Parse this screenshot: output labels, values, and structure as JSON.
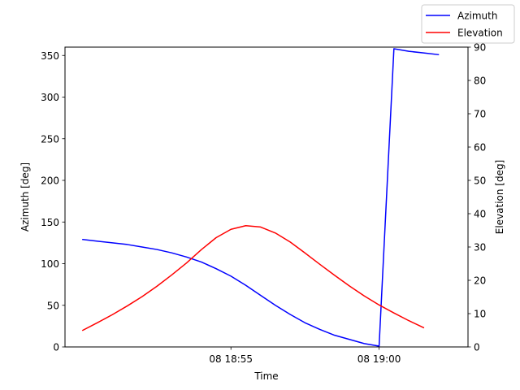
{
  "chart_data": {
    "type": "line",
    "xlabel": "Time",
    "x_ticks": [
      {
        "minute": 55,
        "label": "08 18:55"
      },
      {
        "minute": 60,
        "label": "08 19:00"
      }
    ],
    "xlim_minutes": [
      49.4,
      63.0
    ],
    "y_left": {
      "label": "Azimuth [deg]",
      "ylim": [
        0,
        360
      ],
      "ticks": [
        0,
        50,
        100,
        150,
        200,
        250,
        300,
        350
      ]
    },
    "y_right": {
      "label": "Elevation [deg]",
      "ylim": [
        0,
        90
      ],
      "ticks": [
        0,
        10,
        20,
        30,
        40,
        50,
        60,
        70,
        80,
        90
      ]
    },
    "legend_position": "top-right",
    "series": [
      {
        "name": "Azimuth",
        "axis": "left",
        "color": "#0000ff",
        "points": [
          [
            50.0,
            129
          ],
          [
            50.5,
            127
          ],
          [
            51.0,
            125
          ],
          [
            51.5,
            123
          ],
          [
            52.0,
            120
          ],
          [
            52.5,
            117
          ],
          [
            53.0,
            113
          ],
          [
            53.5,
            108
          ],
          [
            54.0,
            102
          ],
          [
            54.5,
            94
          ],
          [
            55.0,
            85
          ],
          [
            55.5,
            74
          ],
          [
            56.0,
            62
          ],
          [
            56.5,
            50
          ],
          [
            57.0,
            39
          ],
          [
            57.5,
            29
          ],
          [
            58.0,
            21
          ],
          [
            58.5,
            14
          ],
          [
            59.0,
            9
          ],
          [
            59.5,
            4
          ],
          [
            60.0,
            1
          ],
          [
            60.5,
            358
          ],
          [
            61.0,
            355
          ],
          [
            61.5,
            353
          ],
          [
            62.0,
            351
          ]
        ]
      },
      {
        "name": "Elevation",
        "axis": "right",
        "color": "#ff0000",
        "points": [
          [
            50.0,
            5
          ],
          [
            50.5,
            7.3
          ],
          [
            51.0,
            9.7
          ],
          [
            51.5,
            12.3
          ],
          [
            52.0,
            15.1
          ],
          [
            52.5,
            18.2
          ],
          [
            53.0,
            21.6
          ],
          [
            53.5,
            25.2
          ],
          [
            54.0,
            29.2
          ],
          [
            54.5,
            32.8
          ],
          [
            55.0,
            35.3
          ],
          [
            55.5,
            36.4
          ],
          [
            56.0,
            36
          ],
          [
            56.5,
            34.2
          ],
          [
            57.0,
            31.5
          ],
          [
            57.5,
            28.2
          ],
          [
            58.0,
            24.8
          ],
          [
            58.5,
            21.5
          ],
          [
            59.0,
            18.3
          ],
          [
            59.5,
            15.3
          ],
          [
            60.0,
            12.6
          ],
          [
            60.5,
            10.2
          ],
          [
            61.0,
            7.9
          ],
          [
            61.5,
            5.8
          ]
        ]
      }
    ]
  }
}
